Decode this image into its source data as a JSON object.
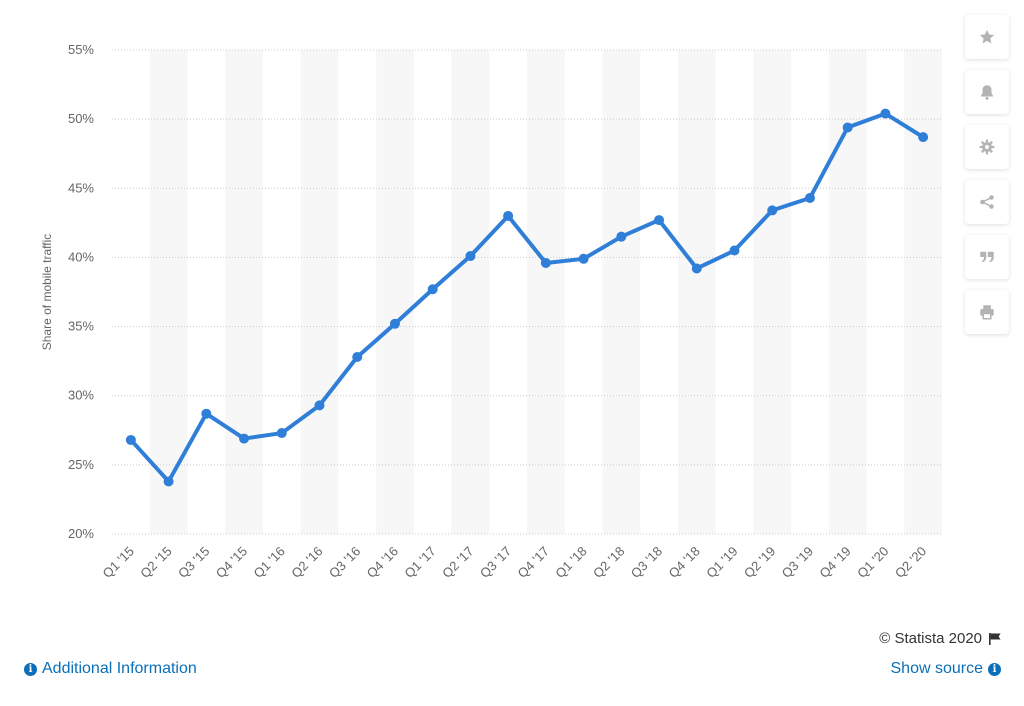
{
  "chart_data": {
    "type": "line",
    "ylabel": "Share of mobile traffic",
    "ylim": [
      20,
      55
    ],
    "yticks": [
      "20%",
      "25%",
      "30%",
      "35%",
      "40%",
      "45%",
      "50%",
      "55%"
    ],
    "ytick_values": [
      20,
      25,
      30,
      35,
      40,
      45,
      50,
      55
    ],
    "categories": [
      "Q1 '15",
      "Q2 '15",
      "Q3 '15",
      "Q4 '15",
      "Q1 '16",
      "Q2 '16",
      "Q3 '16",
      "Q4 '16",
      "Q1 '17",
      "Q2 '17",
      "Q3 '17",
      "Q4 '17",
      "Q1 '18",
      "Q2 '18",
      "Q3 '18",
      "Q4 '18",
      "Q1 '19",
      "Q2 '19",
      "Q3 '19",
      "Q4 '19",
      "Q1 '20",
      "Q2 '20"
    ],
    "series": [
      {
        "values": [
          26.8,
          23.8,
          28.7,
          26.9,
          27.3,
          29.3,
          32.8,
          35.2,
          37.7,
          40.1,
          43.0,
          39.6,
          39.9,
          41.5,
          42.7,
          39.2,
          40.5,
          43.4,
          44.3,
          49.4,
          50.4,
          48.7
        ]
      }
    ],
    "grid": true,
    "colors": {
      "line": "#2f7ed8",
      "band": "#f7f7f7",
      "grid": "#cccccc"
    }
  },
  "sidebar": {
    "buttons": [
      {
        "icon": "star-icon"
      },
      {
        "icon": "bell-icon"
      },
      {
        "icon": "gear-icon"
      },
      {
        "icon": "share-icon"
      },
      {
        "icon": "quote-icon"
      },
      {
        "icon": "print-icon"
      }
    ]
  },
  "footer": {
    "copyright": "© Statista 2020",
    "additional_info": "Additional Information",
    "show_source": "Show source"
  }
}
